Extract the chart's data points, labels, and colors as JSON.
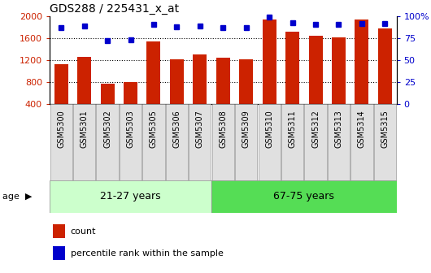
{
  "title": "GDS288 / 225431_x_at",
  "categories": [
    "GSM5300",
    "GSM5301",
    "GSM5302",
    "GSM5303",
    "GSM5305",
    "GSM5306",
    "GSM5307",
    "GSM5308",
    "GSM5309",
    "GSM5310",
    "GSM5311",
    "GSM5312",
    "GSM5313",
    "GSM5314",
    "GSM5315"
  ],
  "counts": [
    1130,
    1260,
    760,
    800,
    1540,
    1220,
    1310,
    1250,
    1220,
    1950,
    1720,
    1640,
    1610,
    1940,
    1780
  ],
  "percentiles": [
    87,
    89,
    72,
    73,
    91,
    88,
    89,
    87,
    87,
    99,
    93,
    91,
    91,
    92,
    92
  ],
  "group1_label": "21-27 years",
  "group1_count": 7,
  "group2_label": "67-75 years",
  "group2_count": 8,
  "bar_color": "#CC2200",
  "dot_color": "#0000CC",
  "group1_bg": "#CCFFCC",
  "group2_bg": "#55DD55",
  "ylim_left": [
    400,
    2000
  ],
  "ylim_right": [
    0,
    100
  ],
  "yticks_left": [
    400,
    800,
    1200,
    1600,
    2000
  ],
  "yticks_right": [
    0,
    25,
    50,
    75,
    100
  ],
  "ytick_labels_right": [
    "0",
    "25",
    "50",
    "75",
    "100%"
  ],
  "dotted_lines": [
    800,
    1200,
    1600
  ],
  "age_label": "age",
  "legend_count_label": "count",
  "legend_pct_label": "percentile rank within the sample",
  "bg_color": "#FFFFFF"
}
